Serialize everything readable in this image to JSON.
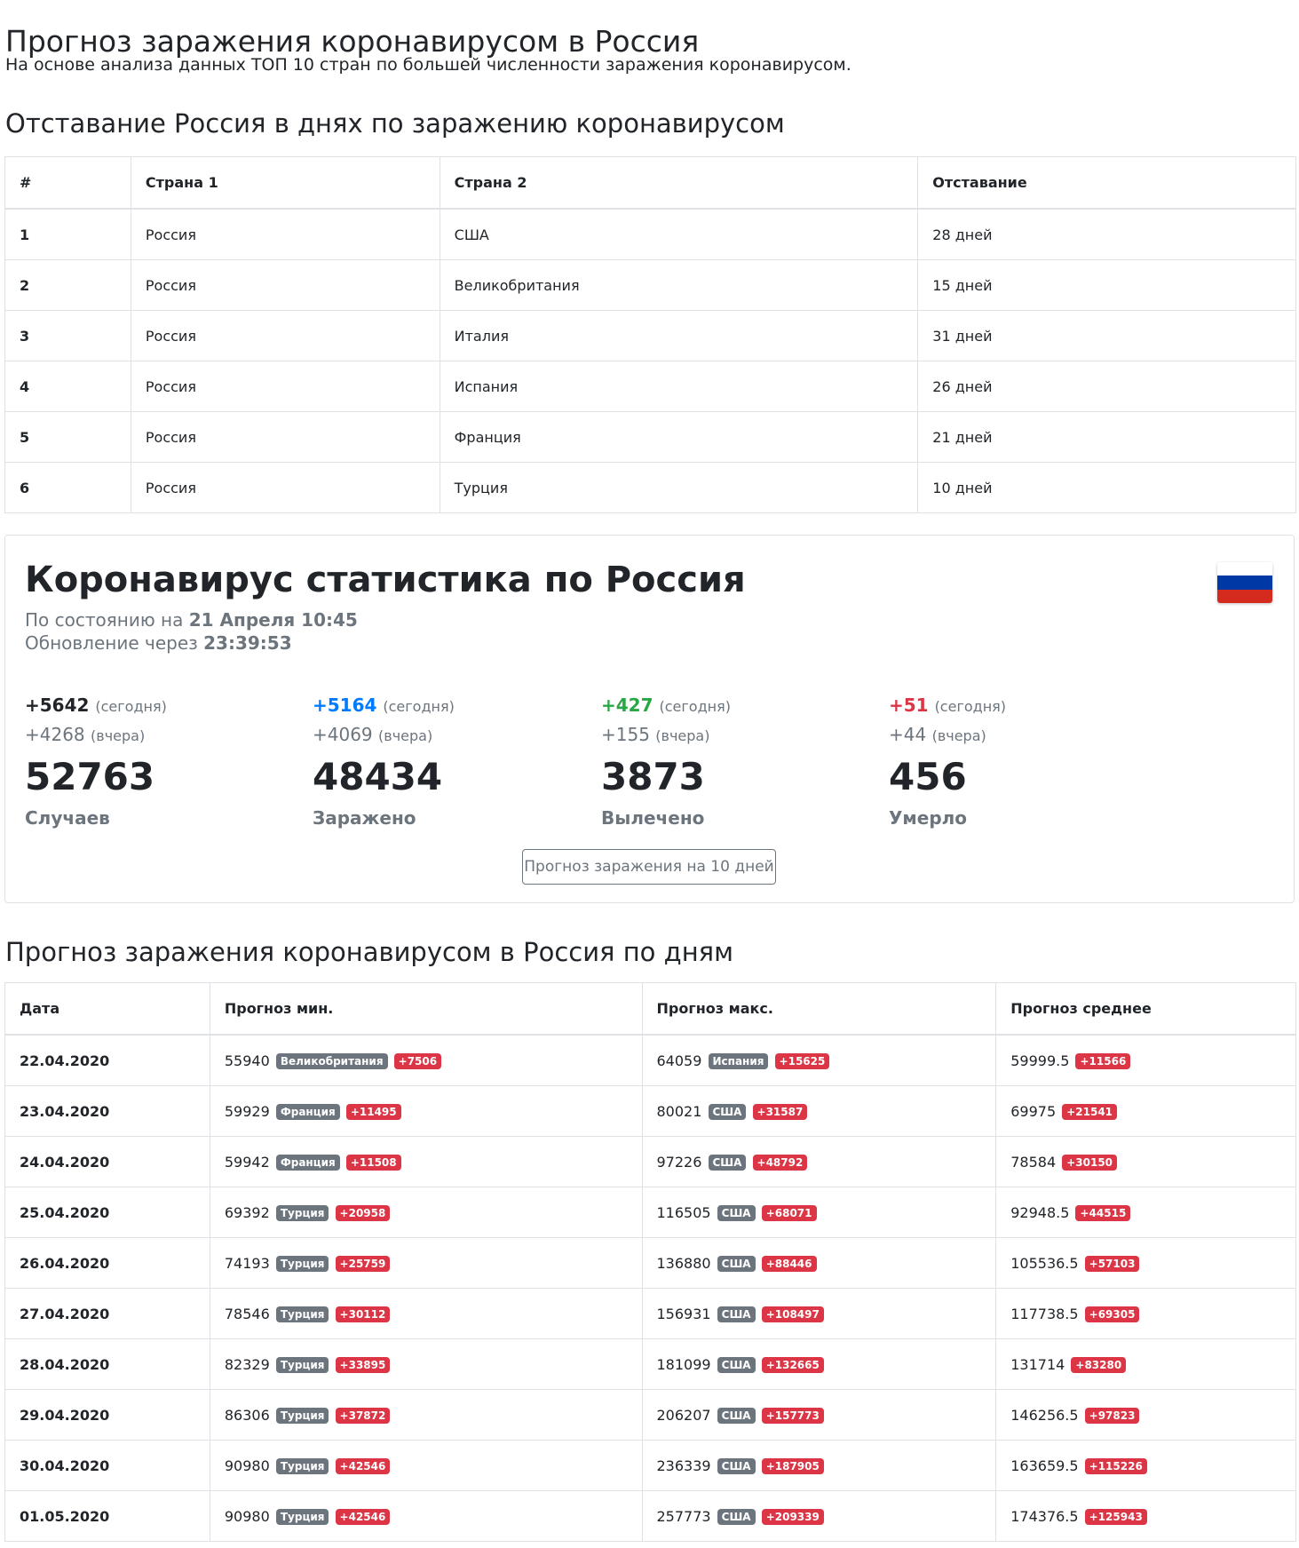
{
  "header": {
    "title": "Прогноз заражения коронавирусом в Россия",
    "subtitle": "На основе анализа данных ТОП 10 стран по большей численности заражения коронавирусом."
  },
  "lag_section": {
    "title": "Отставание Россия в днях по заражению коронавирусом",
    "columns": [
      "#",
      "Страна 1",
      "Страна 2",
      "Отставание"
    ],
    "rows": [
      [
        "1",
        "Россия",
        "США",
        "28 дней"
      ],
      [
        "2",
        "Россия",
        "Великобритания",
        "15 дней"
      ],
      [
        "3",
        "Россия",
        "Италия",
        "31 дней"
      ],
      [
        "4",
        "Россия",
        "Испания",
        "26 дней"
      ],
      [
        "5",
        "Россия",
        "Франция",
        "21 дней"
      ],
      [
        "6",
        "Россия",
        "Турция",
        "10 дней"
      ]
    ]
  },
  "stats": {
    "title": "Коронавирус статистика по Россия",
    "flag_colors": [
      "#ffffff",
      "#0039a6",
      "#d52b1e"
    ],
    "as_of_label": "По состоянию на",
    "as_of_value": "21 Апреля 10:45",
    "update_label": "Обновление через",
    "update_value": "23:39:53",
    "today_word": "(сегодня)",
    "yesterday_word": "(вчера)",
    "cards": [
      {
        "today": "+5642",
        "yesterday": "+4268",
        "total": "52763",
        "label": "Случаев",
        "color": "#212529"
      },
      {
        "today": "+5164",
        "yesterday": "+4069",
        "total": "48434",
        "label": "Заражено",
        "color": "#007bff"
      },
      {
        "today": "+427",
        "yesterday": "+155",
        "total": "3873",
        "label": "Вылечено",
        "color": "#28a745"
      },
      {
        "today": "+51",
        "yesterday": "+44",
        "total": "456",
        "label": "Умерло",
        "color": "#dc3545"
      }
    ],
    "button_label": "Прогноз заражения на 10 дней"
  },
  "forecast_section": {
    "title": "Прогноз заражения коронавирусом в Россия по дням",
    "columns": [
      "Дата",
      "Прогноз мин.",
      "Прогноз макс.",
      "Прогноз среднее"
    ],
    "rows": [
      {
        "date": "22.04.2020",
        "min": "55940",
        "min_country": "Великобритания",
        "min_delta": "+7506",
        "max": "64059",
        "max_country": "Испания",
        "max_delta": "+15625",
        "avg": "59999.5",
        "avg_delta": "+11566"
      },
      {
        "date": "23.04.2020",
        "min": "59929",
        "min_country": "Франция",
        "min_delta": "+11495",
        "max": "80021",
        "max_country": "США",
        "max_delta": "+31587",
        "avg": "69975",
        "avg_delta": "+21541"
      },
      {
        "date": "24.04.2020",
        "min": "59942",
        "min_country": "Франция",
        "min_delta": "+11508",
        "max": "97226",
        "max_country": "США",
        "max_delta": "+48792",
        "avg": "78584",
        "avg_delta": "+30150"
      },
      {
        "date": "25.04.2020",
        "min": "69392",
        "min_country": "Турция",
        "min_delta": "+20958",
        "max": "116505",
        "max_country": "США",
        "max_delta": "+68071",
        "avg": "92948.5",
        "avg_delta": "+44515"
      },
      {
        "date": "26.04.2020",
        "min": "74193",
        "min_country": "Турция",
        "min_delta": "+25759",
        "max": "136880",
        "max_country": "США",
        "max_delta": "+88446",
        "avg": "105536.5",
        "avg_delta": "+57103"
      },
      {
        "date": "27.04.2020",
        "min": "78546",
        "min_country": "Турция",
        "min_delta": "+30112",
        "max": "156931",
        "max_country": "США",
        "max_delta": "+108497",
        "avg": "117738.5",
        "avg_delta": "+69305"
      },
      {
        "date": "28.04.2020",
        "min": "82329",
        "min_country": "Турция",
        "min_delta": "+33895",
        "max": "181099",
        "max_country": "США",
        "max_delta": "+132665",
        "avg": "131714",
        "avg_delta": "+83280"
      },
      {
        "date": "29.04.2020",
        "min": "86306",
        "min_country": "Турция",
        "min_delta": "+37872",
        "max": "206207",
        "max_country": "США",
        "max_delta": "+157773",
        "avg": "146256.5",
        "avg_delta": "+97823"
      },
      {
        "date": "30.04.2020",
        "min": "90980",
        "min_country": "Турция",
        "min_delta": "+42546",
        "max": "236339",
        "max_country": "США",
        "max_delta": "+187905",
        "avg": "163659.5",
        "avg_delta": "+115226"
      },
      {
        "date": "01.05.2020",
        "min": "90980",
        "min_country": "Турция",
        "min_delta": "+42546",
        "max": "257773",
        "max_country": "США",
        "max_delta": "+209339",
        "avg": "174376.5",
        "avg_delta": "+125943"
      }
    ]
  }
}
